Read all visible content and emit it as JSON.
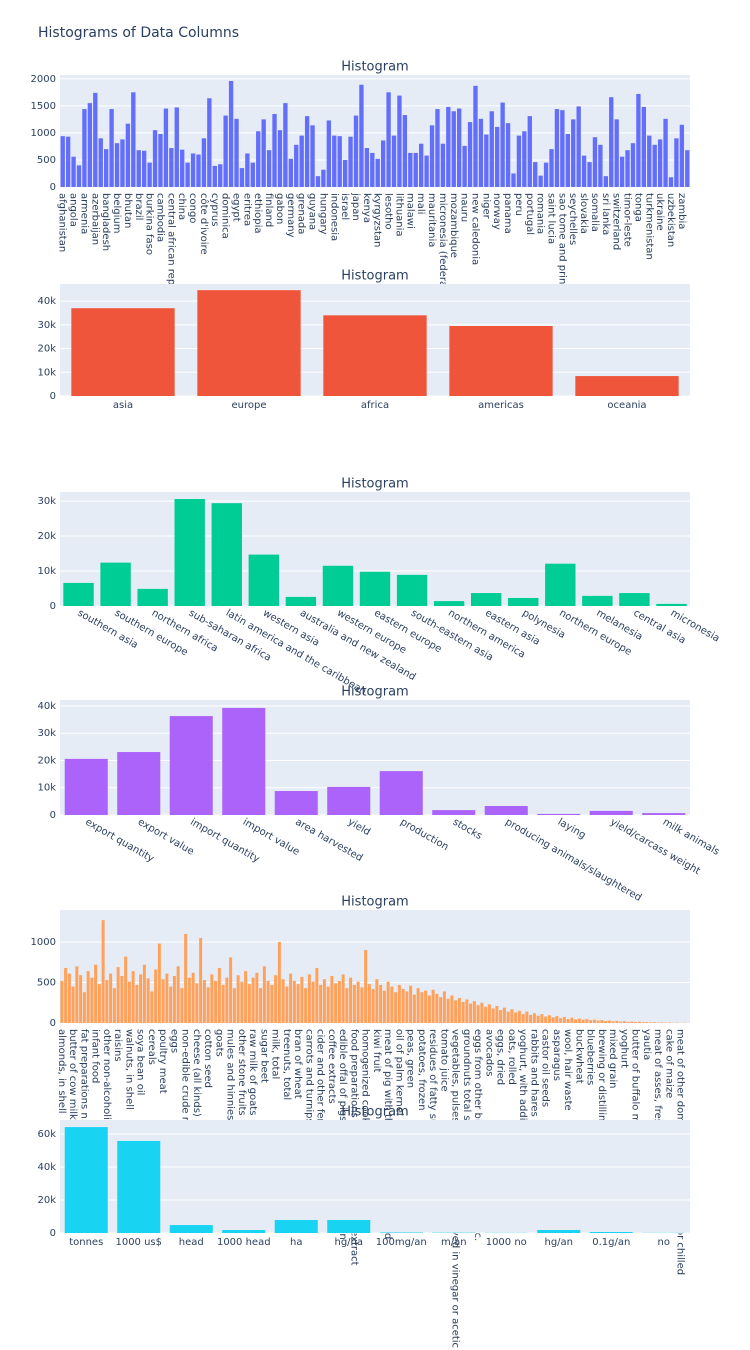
{
  "title": "Histograms of Data Columns",
  "chart_data": [
    {
      "type": "bar",
      "title": "Histogram",
      "color": "#636efa",
      "grid": true,
      "categories": [
        "afghanistan",
        null,
        "angola",
        null,
        "armenia",
        null,
        "azerbaijan",
        null,
        "bangladesh",
        null,
        "belgium",
        null,
        "bhutan",
        null,
        "brazil",
        null,
        "burkina faso",
        null,
        "cambodia",
        null,
        "central african republic",
        null,
        "china",
        null,
        "congo",
        null,
        "côte d'ivoire",
        null,
        "cyprus",
        null,
        "dominica",
        null,
        "egypt",
        null,
        "eritrea",
        null,
        "ethiopia",
        null,
        "finland",
        null,
        "gabon",
        null,
        "germany",
        null,
        "grenada",
        null,
        "guyana",
        null,
        "hungary",
        null,
        "indonesia",
        null,
        "israel",
        null,
        "japan",
        null,
        "kenya",
        null,
        "kyrgyzstan",
        null,
        "lesotho",
        null,
        "lithuania",
        null,
        "malawi",
        null,
        "mali",
        null,
        "mauritania",
        null,
        "micronesia (federated states of)",
        null,
        "mozambique",
        null,
        "nauru",
        null,
        "new caledonia",
        null,
        "niger",
        null,
        "norway",
        null,
        "panama",
        null,
        "peru",
        null,
        "portugal",
        null,
        "romania",
        null,
        "saint lucia",
        null,
        "sao tome and principe",
        null,
        "seychelles",
        null,
        "slovakia",
        null,
        "somalia",
        null,
        "sri lanka",
        null,
        "switzerland",
        null,
        "timor-leste",
        null,
        "tonga",
        null,
        "turkmenistan",
        null,
        "ukraine",
        null,
        "uzbekistan",
        null,
        "zambia",
        null
      ],
      "values": [
        940,
        930,
        560,
        400,
        1440,
        1550,
        1740,
        900,
        700,
        1440,
        810,
        880,
        1170,
        1750,
        680,
        670,
        450,
        1050,
        980,
        1450,
        720,
        1470,
        690,
        450,
        620,
        600,
        900,
        1640,
        390,
        420,
        1320,
        1960,
        1260,
        350,
        620,
        450,
        1030,
        1250,
        680,
        1350,
        1050,
        1550,
        520,
        780,
        950,
        1310,
        1140,
        200,
        320,
        1230,
        950,
        940,
        500,
        930,
        1320,
        1890,
        720,
        630,
        520,
        860,
        1750,
        950,
        1690,
        1330,
        630,
        630,
        800,
        580,
        1140,
        1440,
        800,
        1480,
        1400,
        1450,
        760,
        1200,
        1870,
        1260,
        970,
        1400,
        1110,
        1560,
        1180,
        250,
        950,
        1030,
        1310,
        460,
        210,
        450,
        700,
        1440,
        1420,
        980,
        1250,
        1490,
        580,
        460,
        920,
        780,
        200,
        1660,
        1250,
        560,
        680,
        810,
        1720,
        1480,
        950,
        780,
        880,
        1260,
        180,
        900,
        1150,
        680
      ],
      "ylim": [
        0,
        2070
      ],
      "yticks": [
        0,
        500,
        1000,
        1500,
        2000
      ]
    },
    {
      "type": "bar",
      "title": "Histogram",
      "color": "#EF553B",
      "grid": true,
      "categories": [
        "asia",
        "europe",
        "africa",
        "americas",
        "oceania"
      ],
      "values": [
        37000,
        44600,
        34000,
        29500,
        8400
      ],
      "ylim": [
        0,
        47200
      ],
      "yticks": [
        0,
        {
          "value": 10000,
          "label": "10k"
        },
        {
          "value": 20000,
          "label": "20k"
        },
        {
          "value": 30000,
          "label": "30k"
        },
        {
          "value": 40000,
          "label": "40k"
        }
      ]
    },
    {
      "type": "bar",
      "title": "Histogram",
      "color": "#00cc96",
      "grid": true,
      "categories": [
        "southern asia",
        "southern europe",
        "northern africa",
        "sub-saharan africa",
        "latin america and the caribbean",
        "western asia",
        "australia and new zealand",
        "western europe",
        "eastern europe",
        "south-eastern asia",
        "northern america",
        "eastern asia",
        "polynesia",
        "northern europe",
        "melanesia",
        "central asia",
        "micronesia"
      ],
      "values": [
        6600,
        12400,
        4900,
        30600,
        29400,
        14700,
        2600,
        11500,
        9800,
        8900,
        1400,
        3700,
        2300,
        12100,
        2900,
        3700,
        600
      ],
      "ylim": [
        0,
        32600
      ],
      "yticks": [
        0,
        {
          "value": 10000,
          "label": "10k"
        },
        {
          "value": 20000,
          "label": "20k"
        },
        {
          "value": 30000,
          "label": "30k"
        }
      ]
    },
    {
      "type": "bar",
      "title": "Histogram",
      "color": "#ab63fa",
      "grid": true,
      "categories": [
        "export quantity",
        "export value",
        "import quantity",
        "import value",
        "area harvested",
        "yield",
        "production",
        "stocks",
        "producing animals/slaughtered",
        "laying",
        "yield/carcass weight",
        "milk animals"
      ],
      "values": [
        20600,
        23100,
        36300,
        39300,
        8800,
        10300,
        16100,
        1800,
        3300,
        400,
        1500,
        700
      ],
      "ylim": [
        0,
        42200
      ],
      "yticks": [
        0,
        {
          "value": 10000,
          "label": "10k"
        },
        {
          "value": 20000,
          "label": "20k"
        },
        {
          "value": 30000,
          "label": "30k"
        },
        {
          "value": 40000,
          "label": "40k"
        }
      ]
    },
    {
      "type": "bar",
      "title": "Histogram",
      "color": "#FFA15A",
      "grid": true,
      "categories": [
        "almonds, in shell",
        null,
        null,
        "butter of cow milk",
        null,
        null,
        "fat preparations n.e.c.",
        null,
        null,
        "infant food",
        null,
        null,
        "other non-alcoholic caloric beverages",
        null,
        null,
        "raisins",
        null,
        null,
        "walnuts, in shell",
        null,
        null,
        "soya bean oil",
        null,
        null,
        "cereals",
        null,
        null,
        "poultry meat",
        null,
        null,
        "eggs",
        null,
        null,
        "non-edible crude materials",
        null,
        null,
        "cheese (all kinds)",
        null,
        null,
        "cotton seed",
        null,
        null,
        "goats",
        null,
        null,
        "mules and hinnies",
        null,
        null,
        "other stone fruits",
        null,
        null,
        "raw milk of goats",
        null,
        null,
        "sugar beet",
        null,
        null,
        "milk, total",
        null,
        null,
        "treenuts, total",
        null,
        null,
        "bran of wheat",
        null,
        null,
        "carrots and turnips",
        null,
        null,
        "cider and other fermented beverages",
        null,
        null,
        "coffee extracts",
        null,
        null,
        "edible offal of pigs, fresh, chilled or frozen",
        null,
        null,
        "food preparations of flour, meal or malt extract",
        null,
        null,
        "homogenized cooked fruit, prepared",
        null,
        null,
        "kiwi fruit",
        null,
        null,
        "meat of pig with the bone, fresh or chilled",
        null,
        null,
        "oil of palm kernel",
        null,
        null,
        "peas, green",
        null,
        null,
        "potatoes, frozen",
        null,
        null,
        "residues of fatty substances",
        null,
        null,
        "tomato juice",
        null,
        null,
        "vegetables, pulses and potatoes, preserved in vinegar or acetic acid",
        null,
        null,
        "groundnuts total shelled",
        null,
        null,
        "eggs from other birds in shell, fresh, n.e.c.",
        null,
        null,
        "avocados",
        null,
        null,
        "eggs, dried",
        null,
        null,
        "oats, rolled",
        null,
        null,
        "yoghurt, with additives",
        null,
        null,
        "rabbits and hares",
        null,
        null,
        "castor oil seeds",
        null,
        null,
        "asparagus",
        null,
        null,
        "wool, hair waste",
        null,
        null,
        "buckwheat",
        null,
        null,
        "blueberries",
        null,
        null,
        "brewing or distilling dregs and waste",
        null,
        null,
        "mixed grain",
        null,
        null,
        "yoghurt",
        null,
        null,
        "butter of buffalo milk",
        null,
        null,
        "yautia",
        null,
        null,
        "meat of asses, fresh or chilled",
        null,
        null,
        "cake of maize",
        null,
        null,
        "meat of other domestic camelids, fresh or chilled",
        null,
        null
      ],
      "values": [
        520,
        680,
        610,
        450,
        700,
        590,
        380,
        640,
        560,
        720,
        480,
        1270,
        530,
        610,
        430,
        690,
        580,
        820,
        510,
        640,
        470,
        600,
        720,
        550,
        390,
        660,
        980,
        540,
        610,
        450,
        580,
        700,
        430,
        1100,
        560,
        620,
        490,
        1050,
        530,
        440,
        600,
        520,
        680,
        470,
        560,
        810,
        430,
        590,
        510,
        640,
        480,
        560,
        620,
        430,
        700,
        520,
        470,
        590,
        1000,
        540,
        450,
        610,
        520,
        480,
        570,
        430,
        600,
        510,
        680,
        470,
        540,
        450,
        580,
        490,
        520,
        600,
        430,
        560,
        470,
        510,
        440,
        900,
        480,
        420,
        540,
        470,
        400,
        510,
        450,
        380,
        470,
        420,
        390,
        460,
        350,
        430,
        380,
        400,
        340,
        410,
        360,
        320,
        390,
        300,
        340,
        280,
        310,
        260,
        290,
        240,
        270,
        220,
        250,
        200,
        230,
        180,
        210,
        160,
        190,
        140,
        170,
        130,
        150,
        110,
        140,
        100,
        120,
        90,
        110,
        80,
        95,
        70,
        85,
        60,
        75,
        50,
        65,
        45,
        55,
        40,
        48,
        35,
        42,
        30,
        36,
        25,
        30,
        20,
        26,
        18,
        22,
        15,
        18,
        12,
        15,
        10,
        12,
        8,
        10,
        6,
        8,
        5,
        6,
        4,
        5,
        3,
        4,
        2
      ],
      "ylim": [
        0,
        1395
      ],
      "yticks": [
        0,
        500,
        1000
      ]
    },
    {
      "type": "bar",
      "title": "Histogram",
      "color": "#19d3f3",
      "grid": true,
      "categories": [
        "tonnes",
        "1000 us$",
        "head",
        "1000 head",
        "ha",
        "hg/ha",
        "100mg/an",
        "m/an",
        "1000 no",
        "hg/an",
        "0.1g/an",
        "no"
      ],
      "values": [
        64200,
        55800,
        4800,
        1800,
        7900,
        7900,
        300,
        200,
        100,
        1800,
        600,
        100
      ],
      "ylim": [
        0,
        68500
      ],
      "yticks": [
        0,
        {
          "value": 20000,
          "label": "20k"
        },
        {
          "value": 40000,
          "label": "40k"
        },
        {
          "value": 60000,
          "label": "60k"
        }
      ]
    }
  ]
}
